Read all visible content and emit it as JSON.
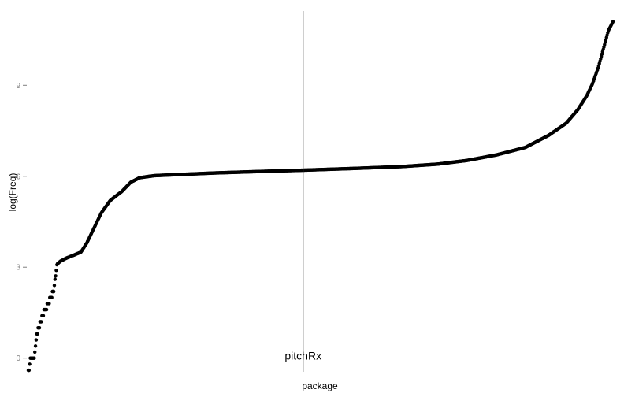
{
  "chart_data": {
    "type": "scatter",
    "xlabel": "package",
    "ylabel": "log(Freq)",
    "ylim": [
      -0.45,
      11.45
    ],
    "xlim": [
      0,
      1
    ],
    "grid": false,
    "yticks": [
      {
        "value": 0,
        "label": "0"
      },
      {
        "value": 3,
        "label": "3"
      },
      {
        "value": 6,
        "label": "6"
      },
      {
        "value": 9,
        "label": "9"
      }
    ],
    "marker": {
      "x": 0.47,
      "label": "pitchRx"
    },
    "colors": {
      "points": "#000000",
      "marker_line": "#333333",
      "tick": "#7f7f7f"
    },
    "curve": [
      [
        0.0,
        -0.45
      ],
      [
        0.004,
        0.0
      ],
      [
        0.01,
        0.05
      ],
      [
        0.014,
        0.7
      ],
      [
        0.019,
        1.1
      ],
      [
        0.024,
        1.4
      ],
      [
        0.029,
        1.6
      ],
      [
        0.034,
        1.8
      ],
      [
        0.039,
        2.0
      ],
      [
        0.043,
        2.2
      ],
      [
        0.046,
        2.6
      ],
      [
        0.049,
        3.1
      ],
      [
        0.055,
        3.2
      ],
      [
        0.065,
        3.3
      ],
      [
        0.078,
        3.4
      ],
      [
        0.09,
        3.5
      ],
      [
        0.1,
        3.8
      ],
      [
        0.11,
        4.2
      ],
      [
        0.125,
        4.8
      ],
      [
        0.14,
        5.2
      ],
      [
        0.16,
        5.5
      ],
      [
        0.175,
        5.8
      ],
      [
        0.19,
        5.95
      ],
      [
        0.215,
        6.02
      ],
      [
        0.26,
        6.06
      ],
      [
        0.32,
        6.11
      ],
      [
        0.4,
        6.16
      ],
      [
        0.47,
        6.2
      ],
      [
        0.56,
        6.26
      ],
      [
        0.64,
        6.32
      ],
      [
        0.7,
        6.4
      ],
      [
        0.75,
        6.52
      ],
      [
        0.8,
        6.7
      ],
      [
        0.85,
        6.95
      ],
      [
        0.89,
        7.35
      ],
      [
        0.92,
        7.75
      ],
      [
        0.94,
        8.2
      ],
      [
        0.955,
        8.65
      ],
      [
        0.965,
        9.05
      ],
      [
        0.975,
        9.6
      ],
      [
        0.985,
        10.3
      ],
      [
        0.992,
        10.8
      ],
      [
        1.0,
        11.1
      ]
    ]
  }
}
